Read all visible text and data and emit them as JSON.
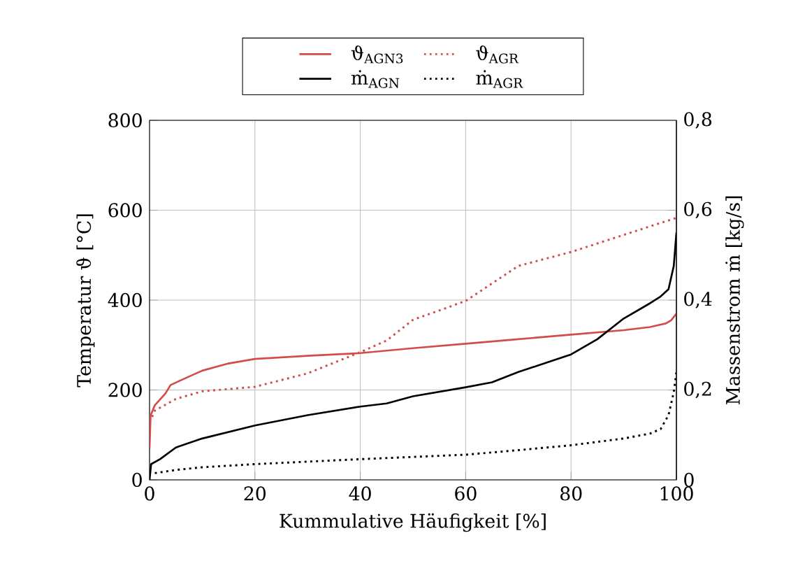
{
  "chart_data": {
    "type": "line",
    "xlabel": "Kummulative Häufigkeit [%]",
    "ylabel": "Temperatur ϑ [°C]",
    "y2label": "Massenstrom ṁ [kg/s]",
    "xlim": [
      0,
      100
    ],
    "xticks": [
      0,
      20,
      40,
      60,
      80,
      100
    ],
    "ylim": [
      0,
      800
    ],
    "yticks": [
      0,
      200,
      400,
      600,
      800
    ],
    "y2lim": [
      0,
      0.8
    ],
    "y2ticks": [
      {
        "value": 0,
        "label": "0"
      },
      {
        "value": 0.2,
        "label": "0,2"
      },
      {
        "value": 0.4,
        "label": "0,4"
      },
      {
        "value": 0.6,
        "label": "0,6"
      },
      {
        "value": 0.8,
        "label": "0,8"
      }
    ],
    "grid": true,
    "legend": "top",
    "marker": "none",
    "series": [
      {
        "name": "ϑ$_{AGN3}$",
        "color": "#d24d4a",
        "line_style": "solid",
        "axis": "y",
        "x": [
          0,
          0.2,
          1,
          3,
          4,
          6,
          10,
          15,
          20,
          30,
          40,
          50,
          60,
          70,
          80,
          90,
          95,
          98,
          99,
          100
        ],
        "values": [
          70,
          143,
          166,
          192,
          211,
          222,
          243,
          259,
          269,
          276,
          282,
          293,
          303,
          313,
          323,
          333,
          340,
          348,
          355,
          370
        ]
      },
      {
        "name": "ϑ$_{AGR}$",
        "color": "#d24d4a",
        "line_style": "dotted",
        "axis": "y",
        "x": [
          0.5,
          1,
          5,
          10,
          20,
          30,
          40,
          45,
          50,
          60,
          70,
          80,
          90,
          100
        ],
        "values": [
          140,
          154,
          180,
          197,
          207,
          237,
          284,
          310,
          356,
          398,
          476,
          507,
          545,
          583
        ]
      },
      {
        "name": "ṁ$_{AGN}$",
        "color": "#000000",
        "line_style": "solid",
        "axis": "y2",
        "x": [
          0,
          0.3,
          2,
          5,
          10,
          20,
          30,
          40,
          45,
          50,
          60,
          65,
          70,
          80,
          85,
          90,
          95,
          97,
          98.5,
          99.5,
          100
        ],
        "values": [
          0,
          0.035,
          0.046,
          0.072,
          0.092,
          0.121,
          0.144,
          0.163,
          0.17,
          0.186,
          0.206,
          0.217,
          0.24,
          0.279,
          0.313,
          0.359,
          0.393,
          0.408,
          0.424,
          0.476,
          0.55
        ]
      },
      {
        "name": "ṁ$_{AGR}$",
        "color": "#000000",
        "line_style": "dotted",
        "axis": "y2",
        "x": [
          1,
          5,
          10,
          20,
          40,
          60,
          70,
          80,
          90,
          95,
          97,
          98.5,
          99.5,
          100
        ],
        "values": [
          0.015,
          0.022,
          0.028,
          0.035,
          0.046,
          0.056,
          0.066,
          0.077,
          0.092,
          0.103,
          0.113,
          0.144,
          0.195,
          0.24
        ]
      }
    ]
  }
}
